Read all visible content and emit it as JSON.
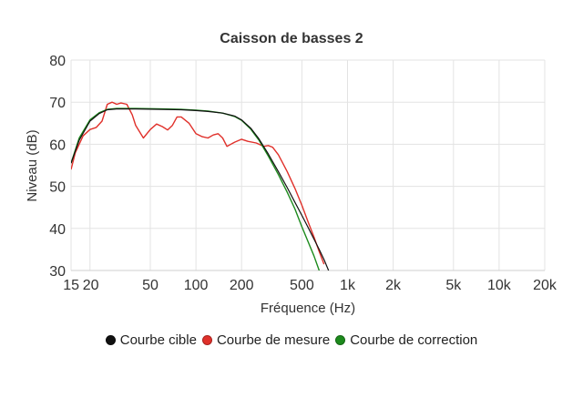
{
  "chart_data": {
    "type": "line",
    "title": "Caisson de basses 2",
    "xlabel": "Fréquence (Hz)",
    "ylabel": "Niveau (dB)",
    "x_scale": "log",
    "xlim": [
      15,
      20000
    ],
    "ylim": [
      30,
      80
    ],
    "x_ticks": [
      {
        "value": 15,
        "label": "15"
      },
      {
        "value": 20,
        "label": "20"
      },
      {
        "value": 50,
        "label": "50"
      },
      {
        "value": 100,
        "label": "100"
      },
      {
        "value": 200,
        "label": "200"
      },
      {
        "value": 500,
        "label": "500"
      },
      {
        "value": 1000,
        "label": "1k"
      },
      {
        "value": 2000,
        "label": "2k"
      },
      {
        "value": 5000,
        "label": "5k"
      },
      {
        "value": 10000,
        "label": "10k"
      },
      {
        "value": 20000,
        "label": "20k"
      }
    ],
    "y_ticks": [
      30,
      40,
      50,
      60,
      70,
      80
    ],
    "grid": true,
    "legend_position": "bottom",
    "series": [
      {
        "name": "Courbe cible",
        "color": "#111111",
        "x": [
          15,
          17,
          20,
          23,
          26,
          30,
          40,
          60,
          80,
          100,
          120,
          150,
          180,
          200,
          230,
          260,
          300,
          350,
          400,
          450,
          500,
          550,
          600,
          650,
          700,
          750
        ],
        "y": [
          55.5,
          61,
          65.5,
          67.3,
          68.2,
          68.4,
          68.4,
          68.3,
          68.2,
          68.0,
          67.8,
          67.4,
          66.7,
          65.8,
          63.8,
          61.3,
          57.7,
          53.5,
          49.7,
          46.2,
          43.1,
          40.2,
          37.5,
          35.0,
          32.6,
          30.0
        ]
      },
      {
        "name": "Courbe de mesure",
        "color": "#e0302a",
        "x": [
          15,
          16,
          18,
          20,
          22,
          24,
          26,
          28,
          30,
          32,
          35,
          38,
          40,
          45,
          50,
          55,
          60,
          65,
          70,
          75,
          80,
          90,
          100,
          110,
          120,
          130,
          140,
          150,
          160,
          180,
          200,
          220,
          250,
          280,
          300,
          320,
          350,
          400,
          450,
          500,
          550,
          600,
          650,
          700
        ],
        "y": [
          54,
          58,
          62,
          63.5,
          64,
          65.5,
          69.5,
          70,
          69.5,
          69.8,
          69.5,
          67,
          64.5,
          61.5,
          63.5,
          64.8,
          64.2,
          63.4,
          64.5,
          66.5,
          66.5,
          65,
          62.5,
          61.8,
          61.5,
          62.2,
          62.5,
          61.5,
          59.5,
          60.5,
          61.2,
          60.7,
          60.3,
          59.5,
          59.7,
          59.3,
          57.5,
          53.5,
          49.5,
          45.5,
          41.5,
          38.0,
          34.5,
          31.5
        ]
      },
      {
        "name": "Courbe de correction",
        "color": "#1c8a1c",
        "x": [
          15,
          17,
          20,
          23,
          26,
          30,
          40,
          60,
          80,
          100,
          120,
          150,
          180,
          200,
          230,
          260,
          300,
          350,
          400,
          450,
          500,
          550,
          600,
          650
        ],
        "y": [
          55.5,
          61.5,
          65.8,
          67.5,
          68.3,
          68.5,
          68.5,
          68.4,
          68.3,
          68.1,
          67.9,
          67.4,
          66.6,
          65.7,
          63.6,
          61.0,
          57.2,
          52.8,
          48.6,
          44.6,
          40.4,
          36.8,
          33.5,
          30.0
        ]
      }
    ]
  }
}
